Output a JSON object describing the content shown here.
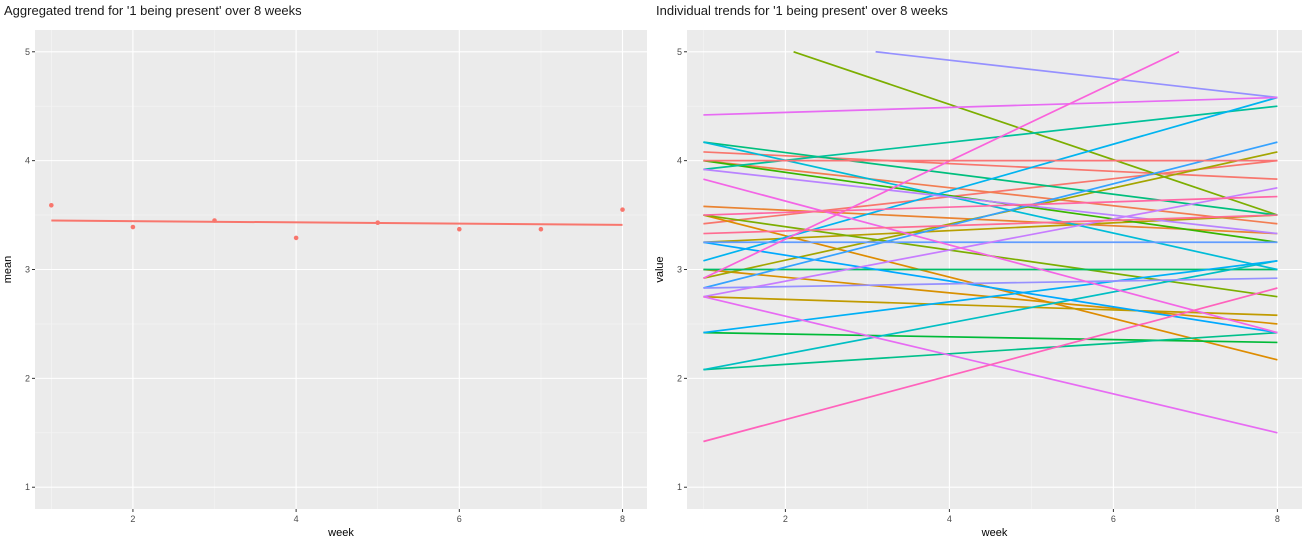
{
  "chart_data": [
    {
      "type": "scatter",
      "title": "Aggregated trend for '1 being present' over 8 weeks",
      "xlabel": "week",
      "ylabel": "mean",
      "xlim": [
        0.8,
        8.3
      ],
      "ylim": [
        0.8,
        5.2
      ],
      "xticks": [
        2,
        4,
        6,
        8
      ],
      "yticks": [
        1,
        2,
        3,
        4,
        5
      ],
      "grid": true,
      "legend": "none",
      "color": "#F8766D",
      "points": [
        {
          "x": 1,
          "y": 3.59
        },
        {
          "x": 2,
          "y": 3.39
        },
        {
          "x": 3,
          "y": 3.45
        },
        {
          "x": 4,
          "y": 3.29
        },
        {
          "x": 5,
          "y": 3.43
        },
        {
          "x": 6,
          "y": 3.37
        },
        {
          "x": 7,
          "y": 3.37
        },
        {
          "x": 8,
          "y": 3.55
        }
      ],
      "trend_line": {
        "x1": 1,
        "y1": 3.45,
        "x2": 8,
        "y2": 3.41
      }
    },
    {
      "type": "line",
      "title": "Individual trends for '1 being present' over 8 weeks",
      "xlabel": "week",
      "ylabel": "value",
      "xlim": [
        0.8,
        8.3
      ],
      "ylim": [
        0.8,
        5.2
      ],
      "xticks": [
        2,
        4,
        6,
        8
      ],
      "yticks": [
        1,
        2,
        3,
        4,
        5
      ],
      "grid": true,
      "legend": "none",
      "series": [
        {
          "color": "#F8766D",
          "x1": 1,
          "y1": 4.08,
          "x2": 8,
          "y2": 3.83
        },
        {
          "color": "#F8766D",
          "x1": 1,
          "y1": 3.42,
          "x2": 8,
          "y2": 4.0
        },
        {
          "color": "#F27D52",
          "x1": 1,
          "y1": 4.0,
          "x2": 8,
          "y2": 3.42
        },
        {
          "color": "#EA8331",
          "x1": 1,
          "y1": 3.58,
          "x2": 8,
          "y2": 3.33
        },
        {
          "color": "#DE8C00",
          "x1": 1,
          "y1": 3.5,
          "x2": 8,
          "y2": 2.17
        },
        {
          "color": "#D89000",
          "x1": 1,
          "y1": 3.0,
          "x2": 8,
          "y2": 2.5
        },
        {
          "color": "#C09B00",
          "x1": 1,
          "y1": 2.75,
          "x2": 8,
          "y2": 2.58
        },
        {
          "color": "#B79F00",
          "x1": 1,
          "y1": 3.25,
          "x2": 8,
          "y2": 3.5
        },
        {
          "color": "#A3A500",
          "x1": 1,
          "y1": 2.92,
          "x2": 8,
          "y2": 4.08
        },
        {
          "color": "#7CAE00",
          "x1": 2.1,
          "y1": 5.0,
          "x2": 8,
          "y2": 3.5
        },
        {
          "color": "#7CAE00",
          "x1": 1,
          "y1": 3.5,
          "x2": 8,
          "y2": 2.75
        },
        {
          "color": "#39B600",
          "x1": 1,
          "y1": 4.0,
          "x2": 8,
          "y2": 3.25
        },
        {
          "color": "#00BA38",
          "x1": 1,
          "y1": 2.42,
          "x2": 8,
          "y2": 2.33
        },
        {
          "color": "#00BE67",
          "x1": 1,
          "y1": 3.0,
          "x2": 8,
          "y2": 3.0
        },
        {
          "color": "#00BF7D",
          "x1": 1,
          "y1": 4.17,
          "x2": 8,
          "y2": 3.5
        },
        {
          "color": "#00C08B",
          "x1": 1,
          "y1": 2.08,
          "x2": 8,
          "y2": 2.42
        },
        {
          "color": "#00C19A",
          "x1": 1,
          "y1": 3.92,
          "x2": 8,
          "y2": 4.5
        },
        {
          "color": "#00BFC4",
          "x1": 1,
          "y1": 2.08,
          "x2": 8,
          "y2": 3.08
        },
        {
          "color": "#00BCD8",
          "x1": 1,
          "y1": 4.17,
          "x2": 8,
          "y2": 3.0
        },
        {
          "color": "#00B4F0",
          "x1": 1,
          "y1": 3.08,
          "x2": 8,
          "y2": 4.58
        },
        {
          "color": "#00B0F6",
          "x1": 1,
          "y1": 2.42,
          "x2": 8,
          "y2": 3.08
        },
        {
          "color": "#00A9FF",
          "x1": 1,
          "y1": 3.25,
          "x2": 8,
          "y2": 2.42
        },
        {
          "color": "#35A2FF",
          "x1": 1,
          "y1": 2.83,
          "x2": 8,
          "y2": 4.17
        },
        {
          "color": "#619CFF",
          "x1": 1,
          "y1": 3.25,
          "x2": 8,
          "y2": 3.25
        },
        {
          "color": "#9590FF",
          "x1": 3.1,
          "y1": 5.0,
          "x2": 8,
          "y2": 4.58
        },
        {
          "color": "#9590FF",
          "x1": 1,
          "y1": 2.83,
          "x2": 8,
          "y2": 2.92
        },
        {
          "color": "#B983FF",
          "x1": 1,
          "y1": 3.92,
          "x2": 8,
          "y2": 3.33
        },
        {
          "color": "#C77CFF",
          "x1": 1,
          "y1": 2.75,
          "x2": 8,
          "y2": 3.75
        },
        {
          "color": "#E76BF3",
          "x1": 1,
          "y1": 4.42,
          "x2": 8,
          "y2": 4.58
        },
        {
          "color": "#E76BF3",
          "x1": 1,
          "y1": 2.75,
          "x2": 8,
          "y2": 1.5
        },
        {
          "color": "#F365E6",
          "x1": 1,
          "y1": 3.83,
          "x2": 8,
          "y2": 2.42
        },
        {
          "color": "#FA62DB",
          "x1": 1,
          "y1": 2.92,
          "x2": 6.8,
          "y2": 5.0
        },
        {
          "color": "#FF62BC",
          "x1": 1,
          "y1": 1.42,
          "x2": 8,
          "y2": 2.83
        },
        {
          "color": "#FF67A4",
          "x1": 1,
          "y1": 3.5,
          "x2": 8,
          "y2": 3.67
        },
        {
          "color": "#FF6C91",
          "x1": 1,
          "y1": 3.33,
          "x2": 8,
          "y2": 3.5
        },
        {
          "color": "#FA7476",
          "x1": 1,
          "y1": 4.0,
          "x2": 8,
          "y2": 4.0
        }
      ]
    }
  ]
}
